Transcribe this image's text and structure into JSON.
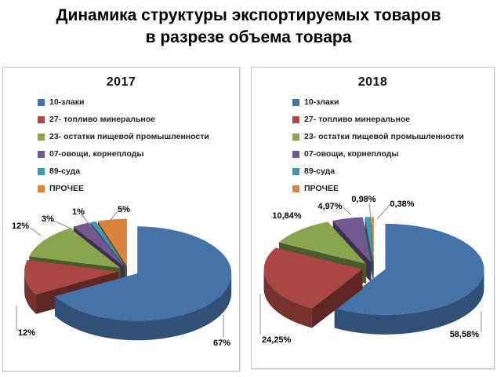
{
  "page_title": {
    "line1": "Динамика структуры экспортируемых товаров",
    "line2": "в разрезе объема товара"
  },
  "chart_data": [
    {
      "type": "pie",
      "style": "3d-exploded",
      "title": "2017",
      "legend_position": "top-left",
      "points": [
        {
          "name": "10-злаки",
          "value": 67,
          "label": "67%",
          "color": "#4572A7"
        },
        {
          "name": "27- топливо минеральное",
          "value": 12,
          "label": "12%",
          "color": "#AA4643"
        },
        {
          "name": "23- остатки пищевой промышленности",
          "value": 12,
          "label": "12%",
          "color": "#89A54E"
        },
        {
          "name": "07-овощи, корнеплоды",
          "value": 3,
          "label": "3%",
          "color": "#71588F"
        },
        {
          "name": "89-суда",
          "value": 1,
          "label": "1%",
          "color": "#4198AF"
        },
        {
          "name": "ПРОЧЕЕ",
          "value": 5,
          "label": "5%",
          "color": "#DB843D"
        }
      ]
    },
    {
      "type": "pie",
      "style": "3d-exploded",
      "title": "2018",
      "legend_position": "top-left",
      "points": [
        {
          "name": "10-злаки",
          "value": 58.58,
          "label": "58,58%",
          "color": "#4572A7"
        },
        {
          "name": "27- топливо минеральное",
          "value": 24.25,
          "label": "24,25%",
          "color": "#AA4643"
        },
        {
          "name": "23- остатки пищевой промышленности",
          "value": 10.84,
          "label": "10,84%",
          "color": "#89A54E"
        },
        {
          "name": "07-овощи, корнеплоды",
          "value": 4.97,
          "label": "4,97%",
          "color": "#71588F"
        },
        {
          "name": "89-суда",
          "value": 0.98,
          "label": "0,98%",
          "color": "#4198AF"
        },
        {
          "name": "ПРОЧЕЕ",
          "value": 0.38,
          "label": "0,38%",
          "color": "#DB843D"
        }
      ]
    }
  ]
}
